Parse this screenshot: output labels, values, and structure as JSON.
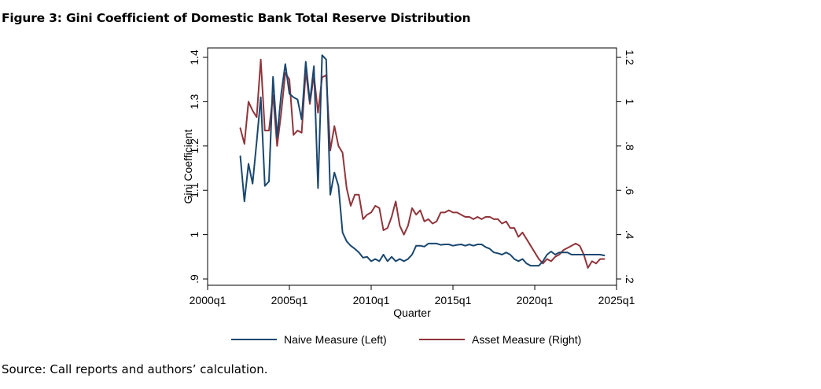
{
  "figure": {
    "title": "Figure 3: Gini Coefficient of Domestic Bank Total Reserve Distribution",
    "source": "Source: Call reports and authors’ calculation."
  },
  "chart_data": {
    "type": "line",
    "title": "Figure 3: Gini Coefficient of Domestic Bank Total Reserve Distribution",
    "xlabel": "Quarter",
    "ylabel_left": "Gini Coefficient",
    "ylabel_right": "",
    "xlim": [
      2000,
      2025
    ],
    "ylim_left": [
      0.9,
      1.4
    ],
    "ylim_right": [
      0.2,
      1.2
    ],
    "x_ticks": [
      2000,
      2005,
      2010,
      2015,
      2020,
      2025
    ],
    "x_tick_labels": [
      "2000q1",
      "2005q1",
      "2010q1",
      "2015q1",
      "2020q1",
      "2025q1"
    ],
    "y_left_ticks": [
      0.9,
      1.0,
      1.1,
      1.2,
      1.3,
      1.4
    ],
    "y_left_tick_labels": [
      ".9",
      "1",
      "1.1",
      "1.2",
      "1.3",
      "1.4"
    ],
    "y_right_ticks": [
      0.2,
      0.4,
      0.6,
      0.8,
      1.0,
      1.2
    ],
    "y_right_tick_labels": [
      ".2",
      ".4",
      ".6",
      ".8",
      "1",
      "1.2"
    ],
    "grid": false,
    "legend_position": "bottom",
    "series": [
      {
        "name": "Naive Measure (Left)",
        "axis": "left",
        "color": "#1a476f",
        "x": [
          2002.0,
          2002.25,
          2002.5,
          2002.75,
          2003.0,
          2003.25,
          2003.5,
          2003.75,
          2004.0,
          2004.25,
          2004.5,
          2004.75,
          2005.0,
          2005.25,
          2005.5,
          2005.75,
          2006.0,
          2006.25,
          2006.5,
          2006.75,
          2007.0,
          2007.25,
          2007.5,
          2007.75,
          2008.0,
          2008.25,
          2008.5,
          2008.75,
          2009.0,
          2009.25,
          2009.5,
          2009.75,
          2010.0,
          2010.25,
          2010.5,
          2010.75,
          2011.0,
          2011.25,
          2011.5,
          2011.75,
          2012.0,
          2012.25,
          2012.5,
          2012.75,
          2013.0,
          2013.25,
          2013.5,
          2013.75,
          2014.0,
          2014.25,
          2014.5,
          2014.75,
          2015.0,
          2015.25,
          2015.5,
          2015.75,
          2016.0,
          2016.25,
          2016.5,
          2016.75,
          2017.0,
          2017.25,
          2017.5,
          2017.75,
          2018.0,
          2018.25,
          2018.5,
          2018.75,
          2019.0,
          2019.25,
          2019.5,
          2019.75,
          2020.0,
          2020.25,
          2020.5,
          2020.75,
          2021.0,
          2021.25,
          2021.5,
          2021.75,
          2022.0,
          2022.25,
          2022.5,
          2022.75,
          2023.0,
          2023.25,
          2023.5,
          2023.75,
          2024.0,
          2024.25
        ],
        "values": [
          1.177,
          1.075,
          1.16,
          1.115,
          1.21,
          1.31,
          1.11,
          1.12,
          1.356,
          1.22,
          1.318,
          1.385,
          1.318,
          1.31,
          1.305,
          1.26,
          1.39,
          1.3,
          1.38,
          1.105,
          1.405,
          1.395,
          1.09,
          1.14,
          1.11,
          1.005,
          0.985,
          0.975,
          0.968,
          0.96,
          0.948,
          0.95,
          0.94,
          0.945,
          0.94,
          0.955,
          0.94,
          0.95,
          0.94,
          0.945,
          0.94,
          0.945,
          0.955,
          0.975,
          0.975,
          0.973,
          0.98,
          0.98,
          0.98,
          0.977,
          0.978,
          0.978,
          0.975,
          0.977,
          0.978,
          0.975,
          0.978,
          0.975,
          0.978,
          0.978,
          0.972,
          0.968,
          0.96,
          0.958,
          0.955,
          0.96,
          0.955,
          0.945,
          0.94,
          0.945,
          0.935,
          0.93,
          0.93,
          0.93,
          0.94,
          0.955,
          0.962,
          0.955,
          0.96,
          0.96,
          0.96,
          0.955,
          0.955,
          0.955,
          0.955,
          0.955,
          0.955,
          0.955,
          0.955,
          0.953
        ]
      },
      {
        "name": "Asset Measure (Right)",
        "axis": "right",
        "color": "#90353b",
        "x": [
          2002.0,
          2002.25,
          2002.5,
          2002.75,
          2003.0,
          2003.25,
          2003.5,
          2003.75,
          2004.0,
          2004.25,
          2004.5,
          2004.75,
          2005.0,
          2005.25,
          2005.5,
          2005.75,
          2006.0,
          2006.25,
          2006.5,
          2006.75,
          2007.0,
          2007.25,
          2007.5,
          2007.75,
          2008.0,
          2008.25,
          2008.5,
          2008.75,
          2009.0,
          2009.25,
          2009.5,
          2009.75,
          2010.0,
          2010.25,
          2010.5,
          2010.75,
          2011.0,
          2011.25,
          2011.5,
          2011.75,
          2012.0,
          2012.25,
          2012.5,
          2012.75,
          2013.0,
          2013.25,
          2013.5,
          2013.75,
          2014.0,
          2014.25,
          2014.5,
          2014.75,
          2015.0,
          2015.25,
          2015.5,
          2015.75,
          2016.0,
          2016.25,
          2016.5,
          2016.75,
          2017.0,
          2017.25,
          2017.5,
          2017.75,
          2018.0,
          2018.25,
          2018.5,
          2018.75,
          2019.0,
          2019.25,
          2019.5,
          2019.75,
          2020.0,
          2020.25,
          2020.5,
          2020.75,
          2021.0,
          2021.25,
          2021.5,
          2021.75,
          2022.0,
          2022.25,
          2022.5,
          2022.75,
          2023.0,
          2023.25,
          2023.5,
          2023.75,
          2024.0,
          2024.25
        ],
        "values": [
          0.88,
          0.81,
          1.0,
          0.96,
          0.93,
          1.19,
          0.87,
          0.87,
          1.03,
          0.8,
          0.95,
          1.13,
          1.1,
          0.85,
          0.87,
          0.86,
          1.14,
          0.99,
          1.12,
          0.95,
          1.11,
          1.12,
          0.78,
          0.89,
          0.8,
          0.77,
          0.61,
          0.53,
          0.58,
          0.58,
          0.47,
          0.49,
          0.5,
          0.53,
          0.52,
          0.42,
          0.43,
          0.48,
          0.55,
          0.44,
          0.4,
          0.44,
          0.52,
          0.49,
          0.51,
          0.46,
          0.47,
          0.45,
          0.46,
          0.5,
          0.5,
          0.51,
          0.5,
          0.5,
          0.49,
          0.48,
          0.48,
          0.47,
          0.48,
          0.47,
          0.48,
          0.48,
          0.47,
          0.47,
          0.45,
          0.46,
          0.43,
          0.43,
          0.39,
          0.41,
          0.38,
          0.35,
          0.32,
          0.29,
          0.27,
          0.29,
          0.28,
          0.3,
          0.31,
          0.33,
          0.34,
          0.35,
          0.36,
          0.35,
          0.31,
          0.25,
          0.28,
          0.27,
          0.29,
          0.29
        ]
      }
    ]
  }
}
